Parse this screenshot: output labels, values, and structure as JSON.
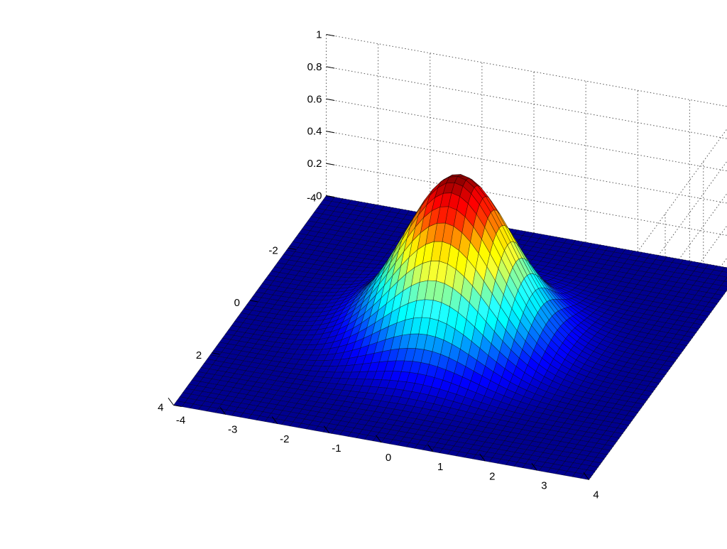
{
  "chart_data": {
    "type": "surface",
    "title": "",
    "xlabel": "",
    "ylabel": "",
    "zlabel": "",
    "function": "z = exp(-(x^2 + y^2) / 2)",
    "x_range": [
      -4,
      4
    ],
    "y_range": [
      -4,
      4
    ],
    "zlim": [
      0,
      1
    ],
    "peak": {
      "x": 0,
      "y": 0,
      "z": 1
    },
    "mesh_lines_per_axis": 50,
    "x_ticks": [
      "-4",
      "-3",
      "-2",
      "-1",
      "0",
      "1",
      "2",
      "3",
      "4"
    ],
    "y_ticks": [
      "-4",
      "-2",
      "0",
      "2",
      "4"
    ],
    "z_ticks": [
      "0",
      "0.2",
      "0.4",
      "0.6",
      "0.8",
      "1"
    ],
    "colormap": "jet",
    "colormap_stops": [
      "#00008f",
      "#0000ff",
      "#00ffff",
      "#ffff00",
      "#ff0000",
      "#800000"
    ],
    "grid": true,
    "box_grid": true,
    "legend": "none"
  }
}
